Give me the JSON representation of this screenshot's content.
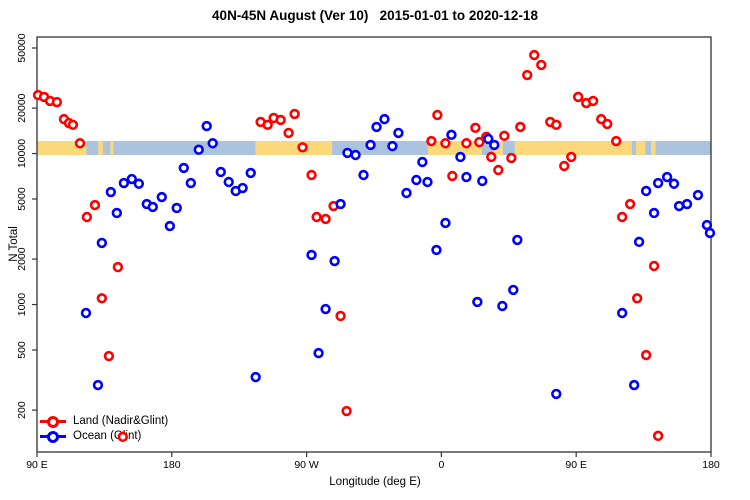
{
  "title": "40N-45N August (Ver 10)   2015-01-01 to 2020-12-18",
  "colors": {
    "land_points": "#FF0000",
    "ocean_points": "#0000FF",
    "land_band": "#FBD879",
    "ocean_band": "#ACC3DE",
    "axis": "#333333",
    "background": "#FFFFFF"
  },
  "legend": {
    "items": [
      {
        "label": "Land (Nadir&Glint)"
      },
      {
        "label": "Ocean (Glint)"
      }
    ]
  },
  "chart_data": {
    "type": "scatter",
    "title": "40N-45N August (Ver 10)   2015-01-01 to 2020-12-18",
    "xlabel": "Longitude (deg E)",
    "ylabel": "N Total",
    "x_axis": {
      "range": [
        90,
        540
      ],
      "ticks": [
        90,
        180,
        270,
        360,
        450,
        540
      ],
      "tick_labels": [
        "90 E",
        "180",
        "90 W",
        "0",
        "90 E",
        "180"
      ],
      "note": "longitude in deg E, wrapping eastward from 90E to 180 (540)"
    },
    "y_axis": {
      "scale": "log",
      "range": [
        105,
        59000
      ],
      "ticks": [
        200,
        500,
        1000,
        2000,
        5000,
        10000,
        20000,
        50000
      ],
      "tick_labels": [
        "200",
        "500",
        "1000",
        "2000",
        "5000",
        "10000",
        "20000",
        "50000"
      ]
    },
    "grid": false,
    "legend_position": "bottom-left",
    "surface_band": {
      "description": "land/ocean strip of the 40N-45N latitude band drawn near y=10000",
      "value_top": 11200,
      "value_bottom": 8900,
      "segments": [
        {
          "from": 90,
          "to": 123,
          "type": "land"
        },
        {
          "from": 123,
          "to": 131,
          "type": "ocean"
        },
        {
          "from": 131,
          "to": 134,
          "type": "land"
        },
        {
          "from": 134,
          "to": 139,
          "type": "ocean"
        },
        {
          "from": 139,
          "to": 141,
          "type": "land"
        },
        {
          "from": 141,
          "to": 236,
          "type": "ocean"
        },
        {
          "from": 236,
          "to": 287,
          "type": "land"
        },
        {
          "from": 287,
          "to": 351,
          "type": "ocean"
        },
        {
          "from": 351,
          "to": 387,
          "type": "land"
        },
        {
          "from": 387,
          "to": 395,
          "type": "ocean"
        },
        {
          "from": 395,
          "to": 401,
          "type": "land"
        },
        {
          "from": 401,
          "to": 409,
          "type": "ocean"
        },
        {
          "from": 409,
          "to": 487,
          "type": "land"
        },
        {
          "from": 487,
          "to": 490,
          "type": "ocean"
        },
        {
          "from": 490,
          "to": 496,
          "type": "land"
        },
        {
          "from": 496,
          "to": 500,
          "type": "ocean"
        },
        {
          "from": 500,
          "to": 503,
          "type": "land"
        },
        {
          "from": 503,
          "to": 540,
          "type": "ocean"
        }
      ]
    },
    "series": [
      {
        "name": "Land (Nadir&Glint)",
        "color": "#FF0000",
        "points": [
          [
            90.7,
            24400
          ],
          [
            94.7,
            23700
          ],
          [
            98.7,
            22300
          ],
          [
            103.3,
            21900
          ],
          [
            108,
            16900
          ],
          [
            111.3,
            15900
          ],
          [
            114,
            15500
          ],
          [
            118.7,
            11700
          ],
          [
            123.3,
            3800
          ],
          [
            128.7,
            4560
          ],
          [
            133.3,
            1100
          ],
          [
            138,
            456
          ],
          [
            144,
            1770
          ],
          [
            147.3,
            133
          ],
          [
            239.3,
            16200
          ],
          [
            244,
            15500
          ],
          [
            248,
            17200
          ],
          [
            252.7,
            16700
          ],
          [
            258,
            13700
          ],
          [
            262,
            18300
          ],
          [
            267.3,
            11000
          ],
          [
            273.3,
            7210
          ],
          [
            276.7,
            3800
          ],
          [
            282.7,
            3690
          ],
          [
            288,
            4490
          ],
          [
            292.7,
            840
          ],
          [
            296.7,
            197
          ],
          [
            353.3,
            12100
          ],
          [
            357.3,
            18000
          ],
          [
            362.7,
            11700
          ],
          [
            367.3,
            7100
          ],
          [
            376.7,
            11700
          ],
          [
            382.7,
            14800
          ],
          [
            385.3,
            11900
          ],
          [
            390,
            12900
          ],
          [
            393.3,
            9490
          ],
          [
            398,
            7780
          ],
          [
            402,
            13100
          ],
          [
            406.7,
            9340
          ],
          [
            412.7,
            15000
          ],
          [
            417.3,
            33100
          ],
          [
            422,
            44900
          ],
          [
            426.7,
            38600
          ],
          [
            432.7,
            16200
          ],
          [
            436.7,
            15500
          ],
          [
            442,
            8270
          ],
          [
            446.7,
            9490
          ],
          [
            451.3,
            23700
          ],
          [
            456.7,
            21600
          ],
          [
            461.3,
            22300
          ],
          [
            466.7,
            16900
          ],
          [
            470.7,
            15700
          ],
          [
            476.7,
            12100
          ],
          [
            480.7,
            3800
          ],
          [
            486,
            4630
          ],
          [
            490.7,
            1100
          ],
          [
            496.7,
            463
          ],
          [
            502,
            1800
          ],
          [
            504.7,
            135
          ]
        ]
      },
      {
        "name": "Ocean (Glint)",
        "color": "#0000FF",
        "points": [
          [
            122.7,
            879
          ],
          [
            130.7,
            293
          ],
          [
            133.3,
            2560
          ],
          [
            139.3,
            5560
          ],
          [
            143.3,
            4040
          ],
          [
            148,
            6380
          ],
          [
            153.3,
            6780
          ],
          [
            158,
            6310
          ],
          [
            163.3,
            4630
          ],
          [
            167.3,
            4430
          ],
          [
            173.3,
            5150
          ],
          [
            178.7,
            3310
          ],
          [
            183.3,
            4360
          ],
          [
            188,
            8030
          ],
          [
            192.7,
            6380
          ],
          [
            198,
            10600
          ],
          [
            203.3,
            15200
          ],
          [
            207.3,
            11700
          ],
          [
            212.7,
            7550
          ],
          [
            218,
            6480
          ],
          [
            222.7,
            5650
          ],
          [
            227.3,
            5910
          ],
          [
            232.7,
            7440
          ],
          [
            236,
            331
          ],
          [
            273.3,
            2130
          ],
          [
            278,
            477
          ],
          [
            282.7,
            934
          ],
          [
            288.7,
            1940
          ],
          [
            292.7,
            4630
          ],
          [
            297.3,
            10100
          ],
          [
            302.7,
            9780
          ],
          [
            308,
            7210
          ],
          [
            312.7,
            11400
          ],
          [
            316.7,
            15000
          ],
          [
            322,
            16900
          ],
          [
            327.3,
            11200
          ],
          [
            331.3,
            13700
          ],
          [
            336.7,
            5480
          ],
          [
            343.3,
            6680
          ],
          [
            347.3,
            8790
          ],
          [
            350.7,
            6480
          ],
          [
            356.7,
            2300
          ],
          [
            362.7,
            3470
          ],
          [
            366.7,
            13300
          ],
          [
            372.7,
            9490
          ],
          [
            376.7,
            6990
          ],
          [
            384,
            1040
          ],
          [
            387.3,
            6580
          ],
          [
            391.3,
            12500
          ],
          [
            395.3,
            11400
          ],
          [
            400.7,
            978
          ],
          [
            408,
            1250
          ],
          [
            410.7,
            2680
          ],
          [
            436.7,
            256
          ],
          [
            480.7,
            879
          ],
          [
            488.7,
            293
          ],
          [
            492,
            2600
          ],
          [
            496.7,
            5650
          ],
          [
            502,
            4040
          ],
          [
            504.7,
            6380
          ],
          [
            510.7,
            6990
          ],
          [
            515.3,
            6310
          ],
          [
            518.7,
            4490
          ],
          [
            524,
            4630
          ],
          [
            531.3,
            5310
          ],
          [
            537.3,
            3360
          ],
          [
            539.3,
            2980
          ]
        ]
      }
    ]
  }
}
